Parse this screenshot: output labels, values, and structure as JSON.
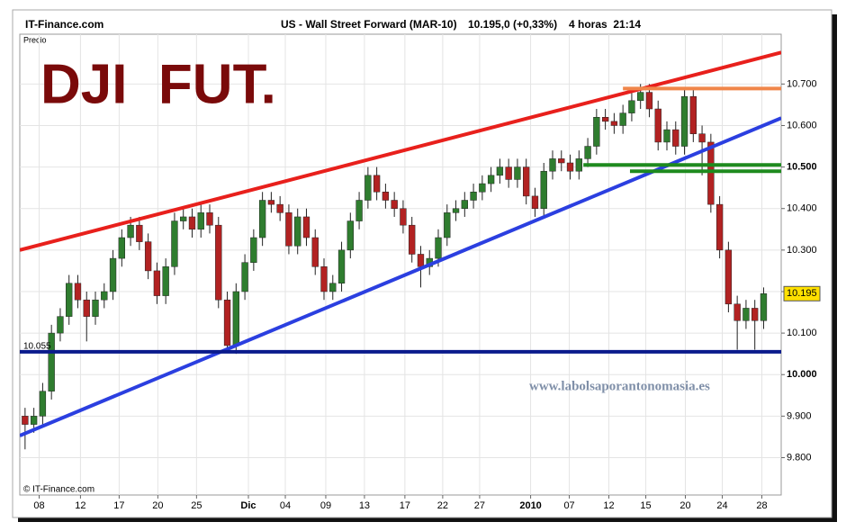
{
  "header": {
    "site": "IT-Finance.com",
    "instrument": "US - Wall Street Forward (MAR-10)",
    "quote": "10.195,0 (+0,33%)",
    "period": "4 horas  21:14"
  },
  "chart_data": {
    "type": "candlestick",
    "y_label": "Precio",
    "annotation": "DJI  FUT.",
    "watermark": "www.labolsaporantonomasia.es",
    "copyright": "© IT-Finance.com",
    "up_color": "#2f7d2f",
    "down_color": "#b22222",
    "xlim": [
      -0.6,
      86
    ],
    "ylim": [
      9.71,
      10.82
    ],
    "grid": true,
    "xticks": [
      {
        "value": 1.6,
        "label": "08"
      },
      {
        "value": 6.3,
        "label": "12"
      },
      {
        "value": 10.7,
        "label": "17"
      },
      {
        "value": 15.1,
        "label": "20"
      },
      {
        "value": 19.5,
        "label": "25"
      },
      {
        "value": 25.4,
        "label": "Dic",
        "bold": true
      },
      {
        "value": 29.6,
        "label": "04"
      },
      {
        "value": 34.2,
        "label": "09"
      },
      {
        "value": 38.6,
        "label": "13"
      },
      {
        "value": 43.2,
        "label": "17"
      },
      {
        "value": 47.5,
        "label": "22"
      },
      {
        "value": 51.7,
        "label": "27"
      },
      {
        "value": 57.5,
        "label": "2010",
        "bold": true
      },
      {
        "value": 61.9,
        "label": "07"
      },
      {
        "value": 66.4,
        "label": "12"
      },
      {
        "value": 70.6,
        "label": "15"
      },
      {
        "value": 75.1,
        "label": "20"
      },
      {
        "value": 79.3,
        "label": "24"
      },
      {
        "value": 83.8,
        "label": "28"
      }
    ],
    "yticks": [
      {
        "value": 9.8,
        "label": "9.800"
      },
      {
        "value": 9.9,
        "label": "9.900"
      },
      {
        "value": 10.0,
        "label": "10.000",
        "bold": true
      },
      {
        "value": 10.1,
        "label": "10.100"
      },
      {
        "value": 10.2,
        "label": "10.200"
      },
      {
        "value": 10.3,
        "label": "10.300"
      },
      {
        "value": 10.4,
        "label": "10.400"
      },
      {
        "value": 10.5,
        "label": "10.500",
        "bold": true
      },
      {
        "value": 10.6,
        "label": "10.600"
      },
      {
        "value": 10.7,
        "label": "10.700"
      }
    ],
    "candles": {
      "open": [
        9.9,
        9.88,
        9.9,
        9.96,
        10.1,
        10.14,
        10.22,
        10.18,
        10.14,
        10.18,
        10.2,
        10.28,
        10.33,
        10.36,
        10.32,
        10.25,
        10.19,
        10.26,
        10.37,
        10.38,
        10.35,
        10.39,
        10.36,
        10.18,
        10.07,
        10.2,
        10.27,
        10.33,
        10.42,
        10.41,
        10.39,
        10.31,
        10.38,
        10.33,
        10.26,
        10.2,
        10.22,
        10.3,
        10.37,
        10.42,
        10.48,
        10.44,
        10.42,
        10.4,
        10.36,
        10.29,
        10.26,
        10.28,
        10.33,
        10.39,
        10.4,
        10.42,
        10.44,
        10.46,
        10.48,
        10.5,
        10.47,
        10.5,
        10.43,
        10.4,
        10.49,
        10.52,
        10.51,
        10.49,
        10.52,
        10.55,
        10.62,
        10.61,
        10.6,
        10.63,
        10.66,
        10.68,
        10.64,
        10.56,
        10.59,
        10.55,
        10.67,
        10.58,
        10.56,
        10.41,
        10.3,
        10.17,
        10.13,
        10.16,
        10.13
      ],
      "high": [
        9.92,
        9.92,
        9.98,
        10.12,
        10.16,
        10.24,
        10.24,
        10.2,
        10.2,
        10.22,
        10.3,
        10.35,
        10.38,
        10.38,
        10.34,
        10.27,
        10.28,
        10.39,
        10.4,
        10.4,
        10.41,
        10.41,
        10.38,
        10.2,
        10.22,
        10.29,
        10.35,
        10.44,
        10.44,
        10.43,
        10.41,
        10.4,
        10.4,
        10.35,
        10.28,
        10.24,
        10.32,
        10.39,
        10.44,
        10.5,
        10.5,
        10.46,
        10.44,
        10.42,
        10.38,
        10.31,
        10.3,
        10.35,
        10.41,
        10.42,
        10.44,
        10.46,
        10.48,
        10.5,
        10.52,
        10.52,
        10.52,
        10.52,
        10.45,
        10.51,
        10.54,
        10.54,
        10.53,
        10.54,
        10.57,
        10.64,
        10.64,
        10.63,
        10.65,
        10.68,
        10.7,
        10.7,
        10.66,
        10.61,
        10.61,
        10.69,
        10.69,
        10.6,
        10.58,
        10.43,
        10.32,
        10.19,
        10.18,
        10.18,
        10.21
      ],
      "low": [
        9.82,
        9.86,
        9.88,
        9.94,
        10.08,
        10.12,
        10.16,
        10.08,
        10.12,
        10.16,
        10.18,
        10.26,
        10.31,
        10.3,
        10.23,
        10.17,
        10.17,
        10.24,
        10.35,
        10.33,
        10.33,
        10.34,
        10.16,
        10.06,
        10.05,
        10.18,
        10.25,
        10.31,
        10.39,
        10.37,
        10.29,
        10.29,
        10.31,
        10.24,
        10.18,
        10.18,
        10.2,
        10.28,
        10.35,
        10.4,
        10.42,
        10.4,
        10.38,
        10.34,
        10.27,
        10.21,
        10.24,
        10.26,
        10.31,
        10.37,
        10.38,
        10.4,
        10.42,
        10.44,
        10.46,
        10.45,
        10.45,
        10.41,
        10.38,
        10.38,
        10.47,
        10.49,
        10.47,
        10.47,
        10.5,
        10.53,
        10.59,
        10.58,
        10.58,
        10.61,
        10.64,
        10.62,
        10.54,
        10.54,
        10.53,
        10.53,
        10.56,
        10.48,
        10.39,
        10.28,
        10.15,
        10.06,
        10.11,
        10.06,
        10.11
      ],
      "close": [
        9.88,
        9.9,
        9.96,
        10.1,
        10.14,
        10.22,
        10.18,
        10.14,
        10.18,
        10.2,
        10.28,
        10.33,
        10.36,
        10.32,
        10.25,
        10.19,
        10.26,
        10.37,
        10.38,
        10.35,
        10.39,
        10.36,
        10.18,
        10.07,
        10.2,
        10.27,
        10.33,
        10.42,
        10.41,
        10.39,
        10.31,
        10.38,
        10.33,
        10.26,
        10.2,
        10.22,
        10.3,
        10.37,
        10.42,
        10.48,
        10.44,
        10.42,
        10.4,
        10.36,
        10.29,
        10.26,
        10.28,
        10.33,
        10.39,
        10.4,
        10.42,
        10.44,
        10.46,
        10.48,
        10.5,
        10.47,
        10.5,
        10.43,
        10.4,
        10.49,
        10.52,
        10.51,
        10.49,
        10.52,
        10.55,
        10.62,
        10.61,
        10.6,
        10.63,
        10.66,
        10.68,
        10.64,
        10.56,
        10.59,
        10.55,
        10.67,
        10.58,
        10.56,
        10.41,
        10.3,
        10.17,
        10.13,
        10.16,
        10.13,
        10.195
      ]
    },
    "lines": [
      {
        "color": "#e8201c",
        "x": [
          -0.6,
          86
        ],
        "y": [
          10.3,
          10.776
        ]
      },
      {
        "color": "#2b3fe0",
        "x": [
          -0.6,
          86
        ],
        "y": [
          9.853,
          10.618
        ]
      },
      {
        "color": "#f0864a",
        "x": [
          68.0,
          86
        ],
        "y": [
          10.689,
          10.689
        ]
      },
      {
        "color": "#1e8a1e",
        "x": [
          63.5,
          86
        ],
        "y": [
          10.505,
          10.505
        ]
      },
      {
        "color": "#1e8a1e",
        "x": [
          68.8,
          86
        ],
        "y": [
          10.49,
          10.49
        ]
      },
      {
        "color": "#0a1a8c",
        "x": [
          -0.6,
          86
        ],
        "y": [
          10.055,
          10.055
        ]
      }
    ]
  }
}
